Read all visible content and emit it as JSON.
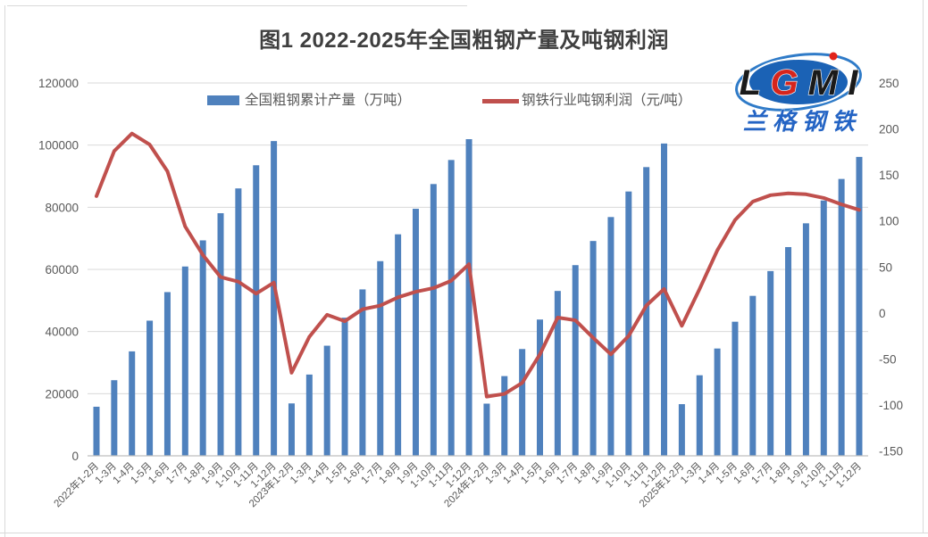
{
  "title": "图1 2022-2025年全国粗钢产量及吨钢利润",
  "logo": {
    "letters": [
      "L",
      "G",
      "M",
      "I"
    ],
    "subtext": "兰格钢铁",
    "ellipse_color": "#1b62b5",
    "swoosh_color": "#2f7bc8",
    "letter_color": "#1a1a1a",
    "g_color": "#d6251d",
    "dot_color": "#e2231a",
    "subtext_color": "#2464c4"
  },
  "chart_data": {
    "type": "combo-bar-line",
    "title": "图1 2022-2025年全国粗钢产量及吨钢利润",
    "grid": true,
    "legend_position": "top",
    "categories": [
      "2022年1-2月",
      "1-3月",
      "1-4月",
      "1-5月",
      "1-6月",
      "1-7月",
      "1-8月",
      "1-9月",
      "1-10月",
      "1-11月",
      "1-12月",
      "2023年1-2月",
      "1-3月",
      "1-4月",
      "1-5月",
      "1-6月",
      "1-7月",
      "1-8月",
      "1-9月",
      "1-10月",
      "1-11月",
      "1-12月",
      "2024年1-2月",
      "1-3月",
      "1-4月",
      "1-5月",
      "1-6月",
      "1-7月",
      "1-8月",
      "1-9月",
      "1-10月",
      "1-11月",
      "1-12月",
      "2025年1-2月",
      "1-3月",
      "1-4月",
      "1-5月",
      "1-6月",
      "1-7月",
      "1-8月",
      "1-9月",
      "1-10月",
      "1-11月",
      "1-12月"
    ],
    "series": [
      {
        "name": "全国粗钢累计产量（万吨）",
        "type": "bar",
        "axis": "left",
        "color": "#4f81bd",
        "values": [
          15800,
          24340,
          33620,
          43500,
          52690,
          60930,
          69340,
          78080,
          86060,
          93510,
          101300,
          16870,
          26160,
          35440,
          44460,
          53560,
          62650,
          71290,
          79510,
          87470,
          95210,
          101910,
          16800,
          25660,
          34370,
          43860,
          53060,
          61370,
          69140,
          76850,
          85070,
          92920,
          100510,
          16630,
          25930,
          34540,
          43160,
          51480,
          59460,
          67180,
          74830,
          82180,
          89100,
          96200
        ]
      },
      {
        "name": "钢铁行业吨钢利润（元/吨）",
        "type": "line",
        "axis": "right",
        "color": "#c0504d",
        "values": [
          127,
          176,
          195,
          183,
          154,
          94,
          63,
          39,
          34,
          21,
          33,
          -65,
          -26,
          -2,
          -9,
          4,
          8,
          17,
          23,
          27,
          35,
          53,
          -91,
          -88,
          -76,
          -45,
          -5,
          -8,
          -27,
          -45,
          -25,
          8,
          26,
          -14,
          26,
          68,
          101,
          121,
          128,
          130,
          129,
          125,
          118,
          112
        ]
      }
    ],
    "left_axis": {
      "min": 0,
      "max": 120000,
      "step": 20000
    },
    "right_axis": {
      "min": -150,
      "max": 250,
      "step": 50
    },
    "grid_color": "#d9d9d9",
    "axis_line_color": "#bfbfbf"
  }
}
